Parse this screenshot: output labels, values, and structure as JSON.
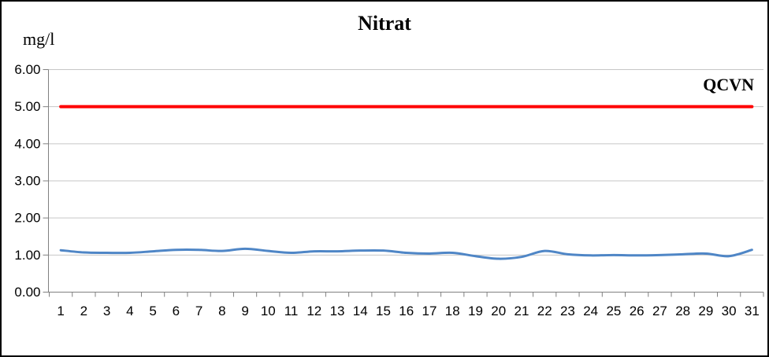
{
  "chart_data": {
    "type": "line",
    "title": "Nitrat",
    "ylabel": "mg/l",
    "xlabel": "",
    "ylim": [
      0,
      6
    ],
    "y_tick_labels": [
      "0.00",
      "1.00",
      "2.00",
      "3.00",
      "4.00",
      "5.00",
      "6.00"
    ],
    "categories": [
      1,
      2,
      3,
      4,
      5,
      6,
      7,
      8,
      9,
      10,
      11,
      12,
      13,
      14,
      15,
      16,
      17,
      18,
      19,
      20,
      21,
      22,
      23,
      24,
      25,
      26,
      27,
      28,
      29,
      30,
      31
    ],
    "series": [
      {
        "name": "Nitrat",
        "color": "#4f86c6",
        "line_width": 3,
        "smooth": true,
        "values": [
          1.13,
          1.07,
          1.06,
          1.06,
          1.1,
          1.14,
          1.14,
          1.11,
          1.17,
          1.11,
          1.06,
          1.1,
          1.1,
          1.12,
          1.12,
          1.06,
          1.04,
          1.06,
          0.97,
          0.9,
          0.95,
          1.11,
          1.02,
          0.99,
          1.0,
          0.99,
          1.0,
          1.02,
          1.04,
          0.97,
          1.14
        ]
      }
    ],
    "ref_line": {
      "label": "QCVN",
      "value": 5.0,
      "color": "#ff0000",
      "line_width": 4
    },
    "grid": true,
    "legend": "none",
    "colors": {
      "grid": "#c6c6c6",
      "axis": "#808080",
      "text": "#000000",
      "background": "#ffffff",
      "border": "#000000"
    }
  }
}
